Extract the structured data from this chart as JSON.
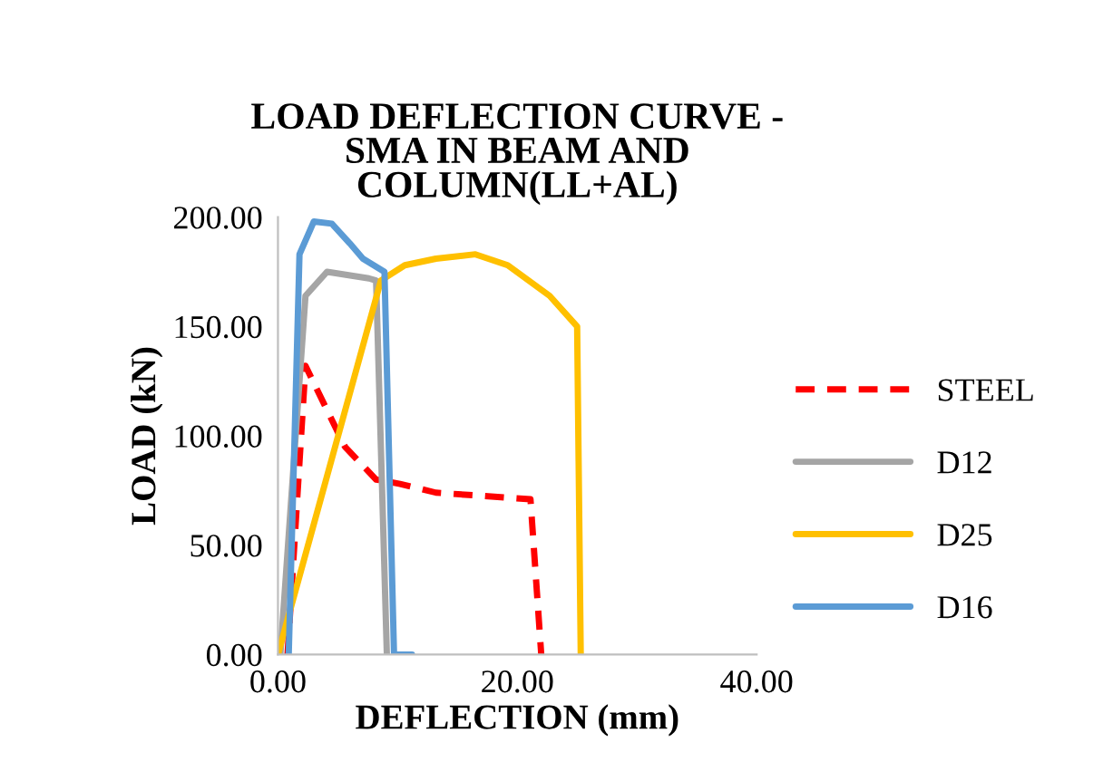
{
  "chart_data": {
    "type": "line",
    "title": "LOAD DEFLECTION CURVE -\nSMA IN BEAM AND\nCOLUMN(LL+AL)",
    "xlabel": "DEFLECTION (mm)",
    "ylabel": "LOAD (kN)",
    "xlim": [
      0,
      40
    ],
    "xticks": [
      {
        "value": 0,
        "label": "0.00"
      },
      {
        "value": 20,
        "label": "20.00"
      },
      {
        "value": 40,
        "label": "40.00"
      }
    ],
    "ylim": [
      0,
      200
    ],
    "yticks": [
      {
        "value": 0,
        "label": "0.00"
      },
      {
        "value": 50,
        "label": "50.00"
      },
      {
        "value": 100,
        "label": "100.00"
      },
      {
        "value": 150,
        "label": "150.00"
      },
      {
        "value": 200,
        "label": "200.00"
      }
    ],
    "grid": false,
    "legend": "right",
    "marker": "none",
    "series": [
      {
        "name": "STEEL",
        "color": "#ff0000",
        "line_style": "dashed",
        "x": [
          0.8,
          2.3,
          5.6,
          8.2,
          10.2,
          13.2,
          21.1,
          22
        ],
        "values": [
          0,
          132,
          95,
          80,
          78,
          74,
          71,
          0
        ]
      },
      {
        "name": "D12",
        "color": "#a5a5a5",
        "x": [
          0.2,
          2.3,
          4.1,
          7.6,
          8.2,
          9.1
        ],
        "values": [
          0,
          164,
          175,
          172,
          171,
          0
        ]
      },
      {
        "name": "D25",
        "color": "#ffc000",
        "x": [
          0,
          8.6,
          10.6,
          13.2,
          16.5,
          19.2,
          22.7,
          25,
          25.3
        ],
        "values": [
          0,
          171,
          178,
          181,
          183,
          178,
          164,
          150,
          0
        ]
      },
      {
        "name": "D16",
        "color": "#5b9bd5",
        "x": [
          0.9,
          1.8,
          3,
          4.5,
          6,
          7.1,
          8.9,
          9.7,
          11.2
        ],
        "values": [
          0,
          183,
          198,
          197,
          188,
          181,
          175,
          0,
          0
        ]
      }
    ]
  }
}
